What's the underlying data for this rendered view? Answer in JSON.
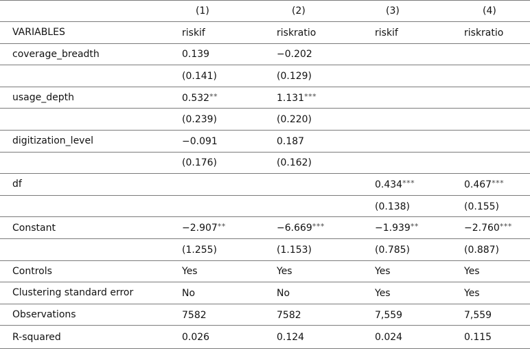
{
  "table": {
    "header": {
      "label": "",
      "columns": [
        "(1)",
        "(2)",
        "(3)",
        "(4)"
      ]
    },
    "rows": [
      {
        "label": "VARIABLES",
        "cells": [
          {
            "v": "riskif",
            "s": ""
          },
          {
            "v": "riskratio",
            "s": ""
          },
          {
            "v": "riskif",
            "s": ""
          },
          {
            "v": "riskratio",
            "s": ""
          }
        ]
      },
      {
        "label": "coverage_breadth",
        "cells": [
          {
            "v": "0.139",
            "s": ""
          },
          {
            "v": "−0.202",
            "s": ""
          },
          {
            "v": "",
            "s": ""
          },
          {
            "v": "",
            "s": ""
          }
        ]
      },
      {
        "label": "",
        "cells": [
          {
            "v": "(0.141)",
            "s": ""
          },
          {
            "v": "(0.129)",
            "s": ""
          },
          {
            "v": "",
            "s": ""
          },
          {
            "v": "",
            "s": ""
          }
        ]
      },
      {
        "label": "usage_depth",
        "cells": [
          {
            "v": "0.532",
            "s": "**"
          },
          {
            "v": "1.131",
            "s": "***"
          },
          {
            "v": "",
            "s": ""
          },
          {
            "v": "",
            "s": ""
          }
        ]
      },
      {
        "label": "",
        "cells": [
          {
            "v": "(0.239)",
            "s": ""
          },
          {
            "v": "(0.220)",
            "s": ""
          },
          {
            "v": "",
            "s": ""
          },
          {
            "v": "",
            "s": ""
          }
        ]
      },
      {
        "label": "digitization_level",
        "cells": [
          {
            "v": "−0.091",
            "s": ""
          },
          {
            "v": "0.187",
            "s": ""
          },
          {
            "v": "",
            "s": ""
          },
          {
            "v": "",
            "s": ""
          }
        ]
      },
      {
        "label": "",
        "cells": [
          {
            "v": "(0.176)",
            "s": ""
          },
          {
            "v": "(0.162)",
            "s": ""
          },
          {
            "v": "",
            "s": ""
          },
          {
            "v": "",
            "s": ""
          }
        ]
      },
      {
        "label": "df",
        "cells": [
          {
            "v": "",
            "s": ""
          },
          {
            "v": "",
            "s": ""
          },
          {
            "v": "0.434",
            "s": "***"
          },
          {
            "v": "0.467",
            "s": "***"
          }
        ]
      },
      {
        "label": "",
        "cells": [
          {
            "v": "",
            "s": ""
          },
          {
            "v": "",
            "s": ""
          },
          {
            "v": "(0.138)",
            "s": ""
          },
          {
            "v": "(0.155)",
            "s": ""
          }
        ]
      },
      {
        "label": "Constant",
        "cells": [
          {
            "v": "−2.907",
            "s": "**"
          },
          {
            "v": "−6.669",
            "s": "***"
          },
          {
            "v": "−1.939",
            "s": "**"
          },
          {
            "v": "−2.760",
            "s": "***"
          }
        ]
      },
      {
        "label": "",
        "cells": [
          {
            "v": "(1.255)",
            "s": ""
          },
          {
            "v": "(1.153)",
            "s": ""
          },
          {
            "v": "(0.785)",
            "s": ""
          },
          {
            "v": "(0.887)",
            "s": ""
          }
        ]
      },
      {
        "label": "Controls",
        "cells": [
          {
            "v": "Yes",
            "s": ""
          },
          {
            "v": "Yes",
            "s": ""
          },
          {
            "v": "Yes",
            "s": ""
          },
          {
            "v": "Yes",
            "s": ""
          }
        ]
      },
      {
        "label": "Clustering standard error",
        "cells": [
          {
            "v": "No",
            "s": ""
          },
          {
            "v": "No",
            "s": ""
          },
          {
            "v": "Yes",
            "s": ""
          },
          {
            "v": "Yes",
            "s": ""
          }
        ]
      },
      {
        "label": "Observations",
        "cells": [
          {
            "v": "7582",
            "s": ""
          },
          {
            "v": "7582",
            "s": ""
          },
          {
            "v": "7,559",
            "s": ""
          },
          {
            "v": "7,559",
            "s": ""
          }
        ]
      },
      {
        "label": "R-squared",
        "cells": [
          {
            "v": "0.026",
            "s": ""
          },
          {
            "v": "0.124",
            "s": ""
          },
          {
            "v": "0.024",
            "s": ""
          },
          {
            "v": "0.115",
            "s": ""
          }
        ]
      }
    ]
  }
}
